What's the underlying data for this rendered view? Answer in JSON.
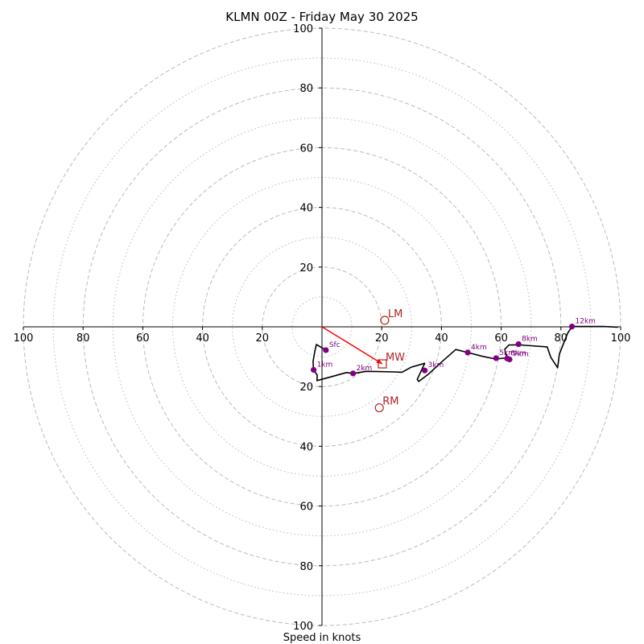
{
  "chart_data": {
    "type": "scatter",
    "title": "KLMN 00Z - Friday May 30 2025",
    "xlabel": "Speed in knots",
    "ylabel": "",
    "xlim": [
      -100,
      100
    ],
    "ylim": [
      -100,
      100
    ],
    "rings": {
      "major": [
        20,
        40,
        60,
        80,
        100
      ],
      "minor": [
        10,
        30,
        50,
        70,
        90
      ]
    },
    "ticks": {
      "left": [
        "100",
        "80",
        "60",
        "40",
        "20"
      ],
      "right": [
        "20",
        "40",
        "60",
        "80",
        "100"
      ],
      "top": [
        "20",
        "40",
        "60",
        "80",
        "100"
      ],
      "bottom": [
        "20",
        "40",
        "60",
        "80",
        "100"
      ]
    },
    "hodograph_trace": [
      [
        1.3,
        -7.8
      ],
      [
        -1.9,
        -5.9
      ],
      [
        -2.4,
        -8.2
      ],
      [
        -3.0,
        -11.6
      ],
      [
        -2.9,
        -13.3
      ],
      [
        -2.8,
        -14.4
      ],
      [
        -1.6,
        -16.2
      ],
      [
        -1.7,
        -18.0
      ],
      [
        2.8,
        -16.8
      ],
      [
        8.2,
        -15.3
      ],
      [
        10.4,
        -15.6
      ],
      [
        14.8,
        -14.9
      ],
      [
        18.8,
        -15.0
      ],
      [
        24.0,
        -15.1
      ],
      [
        26.8,
        -15.2
      ],
      [
        29.9,
        -13.5
      ],
      [
        34.4,
        -12.2
      ],
      [
        31.9,
        -17.6
      ],
      [
        32.4,
        -18.3
      ],
      [
        35.7,
        -15.8
      ],
      [
        40.0,
        -11.8
      ],
      [
        44.8,
        -7.6
      ],
      [
        48.8,
        -8.6
      ],
      [
        53.8,
        -9.9
      ],
      [
        58.3,
        -10.8
      ],
      [
        60.6,
        -10.5
      ],
      [
        62.0,
        -10.6
      ],
      [
        63.1,
        -10.9
      ],
      [
        62.2,
        -10.2
      ],
      [
        61.5,
        -9.1
      ],
      [
        61.2,
        -7.5
      ],
      [
        62.6,
        -6.1
      ],
      [
        65.8,
        -6.0
      ],
      [
        68.1,
        -6.2
      ],
      [
        75.4,
        -6.7
      ],
      [
        76.6,
        -10.2
      ],
      [
        78.9,
        -13.7
      ],
      [
        79.5,
        -9.1
      ],
      [
        82.2,
        -2.2
      ],
      [
        83.7,
        0.1
      ],
      [
        88.7,
        0.1
      ],
      [
        94.2,
        0.1
      ],
      [
        99.1,
        -0.1
      ]
    ],
    "height_points": [
      {
        "label": "Sfc",
        "x": 1.3,
        "y": -7.8
      },
      {
        "label": "1km",
        "x": -2.8,
        "y": -14.4
      },
      {
        "label": "2km",
        "x": 10.4,
        "y": -15.6
      },
      {
        "label": "3km",
        "x": 34.4,
        "y": -14.6
      },
      {
        "label": "4km",
        "x": 48.8,
        "y": -8.6
      },
      {
        "label": "5km",
        "x": 58.3,
        "y": -10.5
      },
      {
        "label": "6km",
        "x": 62.0,
        "y": -10.6
      },
      {
        "label": "7km",
        "x": 62.8,
        "y": -10.9
      },
      {
        "label": "8km",
        "x": 65.8,
        "y": -5.8
      },
      {
        "label": "12km",
        "x": 83.7,
        "y": 0.1
      }
    ],
    "storm_motion": [
      {
        "label": "LM",
        "x": 21.0,
        "y": 2.2,
        "marker": "circle"
      },
      {
        "label": "MW",
        "x": 20.2,
        "y": -12.4,
        "marker": "square"
      },
      {
        "label": "RM",
        "x": 19.2,
        "y": -27.1,
        "marker": "circle"
      }
    ],
    "shear_vector": {
      "from": [
        0,
        0
      ],
      "to": [
        20.2,
        -12.4
      ]
    },
    "colors": {
      "trace": "#000000",
      "height_points": "#800080",
      "storm_motion": "#b22222",
      "shear_vector": "#ff0000",
      "rings": "#bbbbbb"
    }
  }
}
